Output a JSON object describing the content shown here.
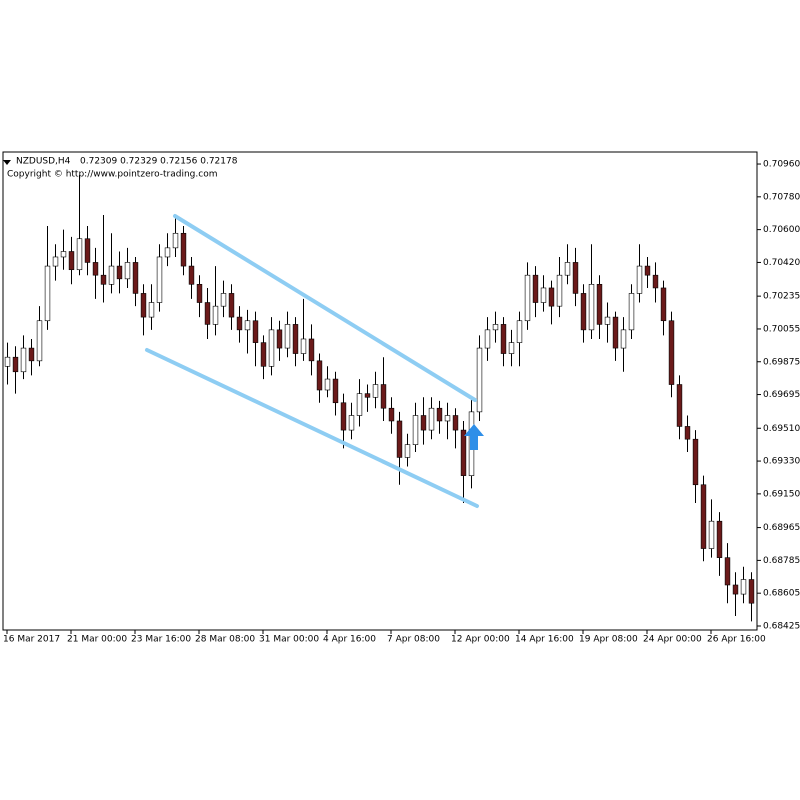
{
  "header": {
    "symbol": "NZDUSD,H4",
    "quote": "0.72309 0.72329 0.72156 0.72178",
    "copyright": "Copyright © http://www.pointzero-trading.com"
  },
  "chart_data": {
    "type": "candlestick",
    "up_color": "#ffffff",
    "down_color": "#6b1a1a",
    "wick_color": "#000000",
    "channel_color": "#8ecdf3",
    "arrow_color": "#2f8fe8",
    "xlim": [
      -0.5,
      93.75
    ],
    "xticks": [
      {
        "value": 0,
        "label": "16 Mar 2017"
      },
      {
        "value": 8,
        "label": "21 Mar 00:00"
      },
      {
        "value": 16,
        "label": "23 Mar 16:00"
      },
      {
        "value": 24,
        "label": "28 Mar 08:00"
      },
      {
        "value": 32,
        "label": "31 Mar 00:00"
      },
      {
        "value": 40,
        "label": "4 Apr 16:00"
      },
      {
        "value": 48,
        "label": "7 Apr 08:00"
      },
      {
        "value": 56,
        "label": "12 Apr 00:00"
      },
      {
        "value": 64,
        "label": "14 Apr 16:00"
      },
      {
        "value": 72,
        "label": "19 Apr 08:00"
      },
      {
        "value": 80,
        "label": "24 Apr 00:00"
      },
      {
        "value": 88,
        "label": "26 Apr 16:00"
      }
    ],
    "ylim": [
      0.68403,
      0.71026
    ],
    "yticks": [
      {
        "value": 0.7096,
        "label": "0.70960"
      },
      {
        "value": 0.7078,
        "label": "0.70780"
      },
      {
        "value": 0.706,
        "label": "0.70600"
      },
      {
        "value": 0.7042,
        "label": "0.70420"
      },
      0.70235,
      0.70055,
      0.69875,
      0.69695,
      {
        "value": 0.6951,
        "label": "0.69510"
      },
      {
        "value": 0.6933,
        "label": "0.69330"
      },
      {
        "value": 0.6915,
        "label": "0.69150"
      },
      0.68965,
      0.68785,
      0.68605,
      0.68425
    ],
    "series": {
      "open": [
        0.6985,
        0.699,
        0.6982,
        0.6995,
        0.6988,
        0.701,
        0.704,
        0.7045,
        0.7048,
        0.7038,
        0.7055,
        0.7042,
        0.7035,
        0.703,
        0.704,
        0.7033,
        0.7042,
        0.7025,
        0.7012,
        0.702,
        0.7045,
        0.705,
        0.7058,
        0.704,
        0.703,
        0.702,
        0.7008,
        0.7018,
        0.7025,
        0.7012,
        0.7005,
        0.701,
        0.6998,
        0.6985,
        0.7005,
        0.6995,
        0.7008,
        0.6992,
        0.7,
        0.6988,
        0.6972,
        0.6978,
        0.6965,
        0.695,
        0.6958,
        0.697,
        0.6968,
        0.6975,
        0.6962,
        0.6955,
        0.6935,
        0.6942,
        0.6958,
        0.695,
        0.6962,
        0.6955,
        0.6958,
        0.695,
        0.6925,
        0.696,
        0.6995,
        0.7005,
        0.7008,
        0.6992,
        0.6998,
        0.701,
        0.7035,
        0.702,
        0.7028,
        0.7018,
        0.7035,
        0.7042,
        0.7025,
        0.7005,
        0.703,
        0.7008,
        0.7012,
        0.6995,
        0.7005,
        0.7025,
        0.704,
        0.7035,
        0.7028,
        0.701,
        0.6975,
        0.6952,
        0.6945,
        0.692,
        0.6885,
        0.69,
        0.688,
        0.6865,
        0.686,
        0.6868
      ],
      "high": [
        0.6998,
        0.6996,
        0.7002,
        0.7,
        0.7018,
        0.7062,
        0.7052,
        0.706,
        0.7056,
        0.709,
        0.7062,
        0.705,
        0.7068,
        0.7058,
        0.7048,
        0.705,
        0.7045,
        0.703,
        0.703,
        0.7052,
        0.7058,
        0.7068,
        0.7062,
        0.7045,
        0.7035,
        0.7028,
        0.704,
        0.7032,
        0.703,
        0.7018,
        0.7016,
        0.7015,
        0.7002,
        0.7012,
        0.701,
        0.7015,
        0.7012,
        0.7022,
        0.7008,
        0.6992,
        0.6985,
        0.6982,
        0.697,
        0.6965,
        0.6978,
        0.6975,
        0.6982,
        0.699,
        0.6968,
        0.696,
        0.6948,
        0.6965,
        0.6968,
        0.6968,
        0.6966,
        0.6965,
        0.6962,
        0.6955,
        0.6968,
        0.7002,
        0.7012,
        0.7015,
        0.7012,
        0.7005,
        0.7015,
        0.7042,
        0.704,
        0.7035,
        0.7032,
        0.7045,
        0.7052,
        0.705,
        0.703,
        0.7052,
        0.7035,
        0.702,
        0.7015,
        0.7012,
        0.703,
        0.7052,
        0.7045,
        0.7042,
        0.7032,
        0.7015,
        0.698,
        0.6958,
        0.695,
        0.6925,
        0.6912,
        0.6905,
        0.6888,
        0.6872,
        0.6875,
        0.6872
      ],
      "low": [
        0.6975,
        0.697,
        0.6978,
        0.698,
        0.6985,
        0.7005,
        0.7032,
        0.7038,
        0.703,
        0.7035,
        0.7035,
        0.7022,
        0.702,
        0.7025,
        0.7025,
        0.7028,
        0.7018,
        0.7002,
        0.7005,
        0.7015,
        0.704,
        0.7045,
        0.7035,
        0.7022,
        0.7012,
        0.7,
        0.7002,
        0.7012,
        0.7005,
        0.6998,
        0.6992,
        0.6985,
        0.6978,
        0.698,
        0.6988,
        0.699,
        0.6985,
        0.6988,
        0.698,
        0.6965,
        0.6968,
        0.6958,
        0.694,
        0.6945,
        0.6952,
        0.696,
        0.6962,
        0.6955,
        0.6948,
        0.692,
        0.693,
        0.6938,
        0.6942,
        0.6945,
        0.6948,
        0.6945,
        0.694,
        0.691,
        0.6918,
        0.6955,
        0.6988,
        0.6998,
        0.6985,
        0.6985,
        0.6985,
        0.7005,
        0.7012,
        0.7015,
        0.7008,
        0.7012,
        0.703,
        0.7018,
        0.6998,
        0.7,
        0.7,
        0.6998,
        0.6988,
        0.6982,
        0.7,
        0.702,
        0.7028,
        0.702,
        0.7002,
        0.6968,
        0.6945,
        0.6938,
        0.691,
        0.6878,
        0.688,
        0.687,
        0.6855,
        0.6848,
        0.6855,
        0.6845
      ],
      "close": [
        0.699,
        0.6982,
        0.6995,
        0.6988,
        0.701,
        0.704,
        0.7045,
        0.7048,
        0.7038,
        0.7055,
        0.7042,
        0.7035,
        0.703,
        0.704,
        0.7033,
        0.7042,
        0.7025,
        0.7012,
        0.702,
        0.7045,
        0.705,
        0.7058,
        0.704,
        0.703,
        0.702,
        0.7008,
        0.7018,
        0.7025,
        0.7012,
        0.7005,
        0.701,
        0.6998,
        0.6985,
        0.7005,
        0.6995,
        0.7008,
        0.6992,
        0.7,
        0.6988,
        0.6972,
        0.6978,
        0.6965,
        0.695,
        0.6958,
        0.697,
        0.6968,
        0.6975,
        0.6962,
        0.6955,
        0.6935,
        0.6942,
        0.6958,
        0.695,
        0.6962,
        0.6955,
        0.6958,
        0.695,
        0.6925,
        0.696,
        0.6995,
        0.7005,
        0.7008,
        0.6992,
        0.6998,
        0.701,
        0.7035,
        0.702,
        0.7028,
        0.7018,
        0.7035,
        0.7042,
        0.7025,
        0.7005,
        0.703,
        0.7008,
        0.7012,
        0.6995,
        0.7005,
        0.7025,
        0.704,
        0.7035,
        0.7028,
        0.701,
        0.6975,
        0.6952,
        0.6945,
        0.692,
        0.6885,
        0.69,
        0.688,
        0.6865,
        0.686,
        0.6868,
        0.6855
      ]
    }
  }
}
